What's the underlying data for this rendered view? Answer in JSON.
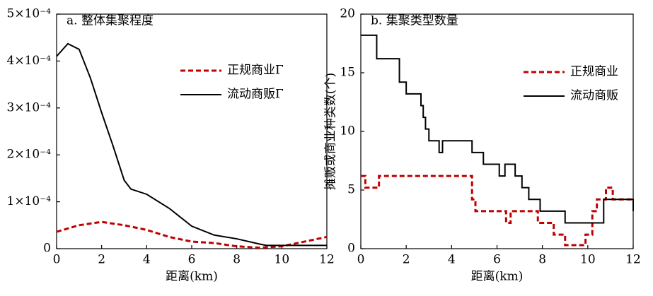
{
  "chart_data": [
    {
      "type": "line",
      "title": "a. 整体集聚程度",
      "xlabel": "距离(km)",
      "xlim": [
        0,
        12
      ],
      "xticks": [
        0,
        2,
        4,
        6,
        8,
        10,
        12
      ],
      "ylim": [
        0,
        0.0005
      ],
      "yticks": [
        0,
        {
          "value": 0.0001,
          "label": "1×10⁻⁴"
        },
        {
          "value": 0.0002,
          "label": "2×10⁻⁴"
        },
        {
          "value": 0.0003,
          "label": "3×10⁻⁴"
        },
        {
          "value": 0.0004,
          "label": "4×10⁻⁴"
        },
        {
          "value": 0.0005,
          "label": "5×10⁻⁴"
        }
      ],
      "legend": "upper right",
      "series": [
        {
          "name": "正规商业Γ",
          "color": "#c00000",
          "dash": true,
          "x": [
            0,
            1,
            2,
            3,
            4,
            5,
            6,
            7,
            8,
            9,
            10,
            11,
            12
          ],
          "values": [
            3.6e-05,
            5e-05,
            5.7e-05,
            5e-05,
            4e-05,
            2.5e-05,
            1.5e-05,
            1.2e-05,
            5e-06,
            2e-06,
            5e-06,
            1.5e-05,
            2.5e-05
          ]
        },
        {
          "name": "流动商贩Γ",
          "color": "#000000",
          "dash": false,
          "x": [
            0,
            0.5,
            1,
            1.5,
            2,
            2.5,
            3,
            3.3,
            4,
            5,
            6,
            7,
            8,
            9,
            9.3,
            10,
            11,
            12
          ],
          "values": [
            0.00041,
            0.000437,
            0.000425,
            0.000364,
            0.00029,
            0.00022,
            0.000146,
            0.000127,
            0.000116,
            8.6e-05,
            4.8e-05,
            2.9e-05,
            2.1e-05,
            1e-05,
            7e-06,
            7e-06,
            7e-06,
            7e-06
          ]
        }
      ]
    },
    {
      "type": "step",
      "title": "b. 集聚类型数量",
      "xlabel": "距离(km)",
      "ylabel": "摊贩或商业种类数(个)",
      "xlim": [
        0,
        12
      ],
      "xticks": [
        0,
        2,
        4,
        6,
        8,
        10,
        12
      ],
      "ylim": [
        0,
        20
      ],
      "yticks": [
        0,
        5,
        10,
        15,
        20
      ],
      "legend": "upper right",
      "series": [
        {
          "name": "正规商业",
          "color": "#c00000",
          "dash": true,
          "x": [
            0,
            0.2,
            0.8,
            4.9,
            5.05,
            6.4,
            6.6,
            7.8,
            8.5,
            9.0,
            9.9,
            10.2,
            10.4,
            10.8,
            11.1,
            12
          ],
          "values": [
            6.2,
            5.2,
            6.2,
            4.2,
            3.2,
            2.2,
            3.2,
            2.2,
            1.2,
            0.3,
            1.2,
            3.2,
            4.2,
            5.2,
            4.2,
            4.2
          ]
        },
        {
          "name": "流动商贩",
          "color": "#000000",
          "dash": false,
          "x": [
            0,
            0.7,
            1.7,
            2.0,
            2.65,
            2.75,
            2.85,
            3.0,
            3.45,
            3.6,
            4.9,
            5.4,
            6.1,
            6.35,
            6.8,
            7.1,
            7.4,
            7.9,
            9.0,
            10.7,
            12
          ],
          "values": [
            18.2,
            16.2,
            14.2,
            13.2,
            12.2,
            11.2,
            10.2,
            9.2,
            8.2,
            9.2,
            8.2,
            7.2,
            6.2,
            7.2,
            6.2,
            5.2,
            4.2,
            3.2,
            2.2,
            4.2,
            3.2
          ]
        }
      ]
    }
  ]
}
